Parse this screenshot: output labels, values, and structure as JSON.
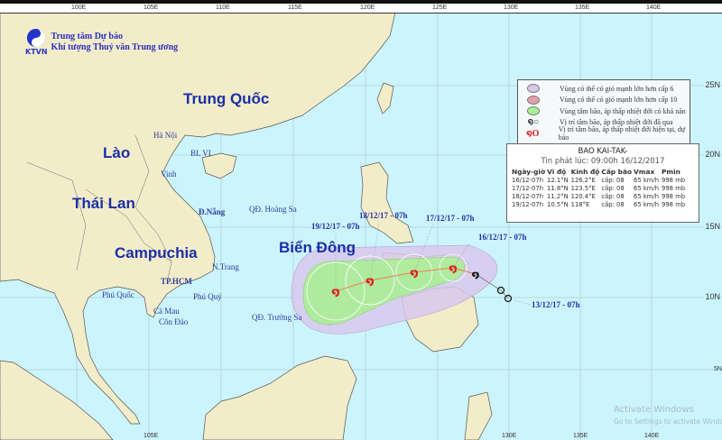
{
  "header": {
    "org_line1": "Trung tâm Dự báo",
    "org_line2": "Khí tượng Thuỷ văn Trung ương",
    "logo_text": "KTVN"
  },
  "axes": {
    "top_longitudes": [
      "100E",
      "105E",
      "110E",
      "115E",
      "120E",
      "125E",
      "130E",
      "135E",
      "140E"
    ],
    "bottom_longitudes": [
      "105E",
      "130E",
      "135E",
      "140E"
    ],
    "right_latitudes": [
      "25N",
      "20N",
      "15N",
      "10N",
      "5N"
    ]
  },
  "countries": {
    "china": "Trung Quốc",
    "laos": "Lào",
    "thailand": "Thái Lan",
    "cambodia": "Campuchia",
    "east_sea": "Biển Đông"
  },
  "cities": {
    "hanoi": "Hà Nội",
    "blvi": "BL VI",
    "vinh": "Vinh",
    "danang": "Đ.Nẵng",
    "hoangsa": "QĐ. Hoàng Sa",
    "nhatrang": "N.Trang",
    "hcm": "TP.HCM",
    "phuquoc": "Phú Quốc",
    "phuquy": "Phú Quý",
    "camau": "Cà Mau",
    "condao": "Côn Đảo",
    "truongsa": "QĐ. Trường Sa"
  },
  "track_labels": {
    "d19": "19/12/17 - 07h",
    "d18": "18/12/17 - 07h",
    "d17": "17/12/17 - 07h",
    "d16": "16/12/17 - 07h",
    "d13": "13/12/17 - 07h"
  },
  "legend": {
    "items": [
      {
        "label": "Vùng có thể có gió mạnh lớn hơn cấp 6",
        "color": "#d8c8ec"
      },
      {
        "label": "Vùng có thể có gió mạnh lớn hơn cấp 10",
        "color": "#e0a0a8"
      },
      {
        "label": "Vùng tâm bão, áp thấp nhiệt đới có khả năng đi qua",
        "color": "#a8f090"
      },
      {
        "label": "Vị trí tâm bão, áp thấp nhiệt đới đã qua",
        "color": "#111111"
      },
      {
        "label": "Vị trí tâm bão, áp thấp nhiệt đới hiện tại, dự báo",
        "color": "#e02020"
      }
    ]
  },
  "info": {
    "title": "BAO KAI-TAK-",
    "issued": "Tin phát lúc: 09:00h 16/12/2017",
    "columns": [
      "Ngày-giờ",
      "Vĩ độ",
      "Kinh độ",
      "Cấp bão",
      "Vmax",
      "Pmin"
    ],
    "rows": [
      [
        "16/12-07h",
        "12.1°N",
        "126.2°E",
        "cấp: 08",
        "65 km/h",
        "998 mb"
      ],
      [
        "17/12-07h",
        "11.8°N",
        "123.5°E",
        "cấp: 08",
        "65 km/h",
        "998 mb"
      ],
      [
        "18/12-07h",
        "11.2°N",
        "120.4°E",
        "cấp: 08",
        "65 km/h",
        "998 mb"
      ],
      [
        "19/12-07h",
        "10.5°N",
        "118°E",
        "cấp: 08",
        "65 km/h",
        "998 mb"
      ]
    ]
  },
  "watermark": {
    "line1": "Activate Windows",
    "line2": "Go to Settings to activate Windows."
  }
}
